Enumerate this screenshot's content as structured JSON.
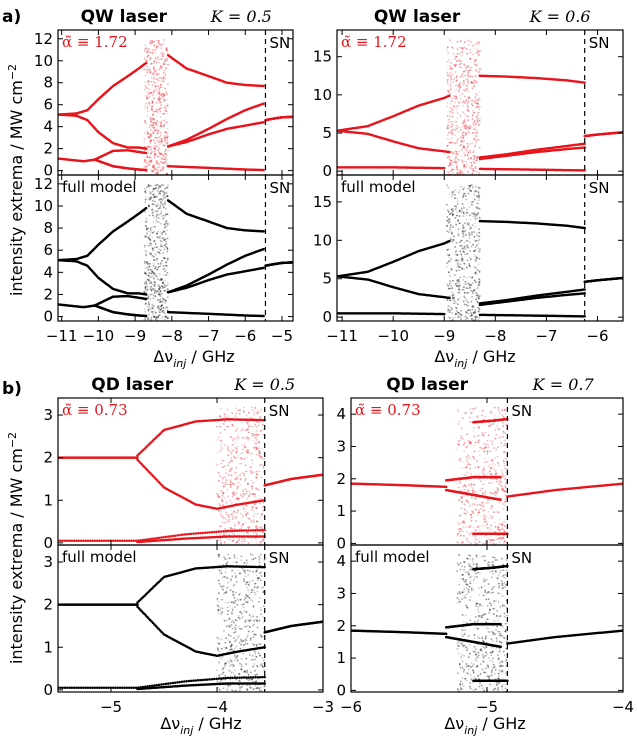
{
  "figure": {
    "panel_labels": [
      "a)",
      "b)"
    ],
    "y_axis_label": "intensity extrema / MW cm",
    "y_axis_label_exp": "−2",
    "x_axis_label": "Δν",
    "x_axis_label_sub": "inj",
    "x_axis_label_unit": " / GHz",
    "colors": {
      "reduced_model": "#e8141c",
      "full_model": "#000000",
      "frame": "#000000"
    }
  },
  "chart_data": [
    {
      "id": "qw-k05",
      "type": "scatter",
      "title": "QW laser",
      "k_label": "K = 0.5",
      "alpha_label": "α̃ ≡ 1.72",
      "sn_label": "SN",
      "bottom_label": "full model",
      "xlim": [
        -11.1,
        -4.7
      ],
      "xticks": [
        -11,
        -10,
        -9,
        -8,
        -7,
        -6,
        -5
      ],
      "xtick_labels": [
        "−11",
        "−10",
        "−9",
        "−8",
        "−7",
        "−6",
        "−5"
      ],
      "top_ylim": [
        -0.4,
        12.8
      ],
      "top_yticks": [
        0,
        2,
        4,
        6,
        8,
        10,
        12
      ],
      "bottom_ylim": [
        -0.4,
        12.8
      ],
      "bottom_yticks": [
        0,
        2,
        4,
        6,
        8,
        10,
        12
      ],
      "sn_x": -5.45,
      "chaos_band": [
        -8.75,
        -8.1
      ],
      "series": [
        {
          "branch": "upper",
          "x": [
            -11.1,
            -10.6,
            -10.3,
            -10.0,
            -9.6,
            -9.2,
            -8.9,
            -8.7
          ],
          "y": [
            5.1,
            5.2,
            5.5,
            6.5,
            7.7,
            8.6,
            9.3,
            9.8
          ]
        },
        {
          "branch": "lower-max",
          "x": [
            -11.1,
            -10.6,
            -10.3,
            -10.0,
            -9.6,
            -9.2,
            -8.9,
            -8.7
          ],
          "y": [
            5.1,
            5.0,
            4.6,
            3.5,
            2.5,
            2.1,
            2.1,
            2.0
          ]
        },
        {
          "branch": "base",
          "x": [
            -11.1,
            -10.4,
            -10.1,
            -9.6,
            -9.2,
            -8.9,
            -8.7
          ],
          "y": [
            1.1,
            0.85,
            1.0,
            1.8,
            1.85,
            1.7,
            1.6
          ]
        },
        {
          "branch": "base-min",
          "x": [
            -10.1,
            -9.6,
            -9.2,
            -8.9,
            -8.7
          ],
          "y": [
            1.0,
            0.4,
            0.2,
            0.1,
            0.05
          ]
        },
        {
          "branch": "post-upper",
          "x": [
            -8.1,
            -7.6,
            -7.0,
            -6.5,
            -6.0,
            -5.5
          ],
          "y": [
            10.5,
            9.3,
            8.6,
            8.0,
            7.8,
            7.7
          ]
        },
        {
          "branch": "post-mid1",
          "x": [
            -8.1,
            -7.6,
            -7.0,
            -6.5,
            -6.0,
            -5.5
          ],
          "y": [
            2.2,
            2.8,
            3.8,
            4.7,
            5.5,
            6.1
          ]
        },
        {
          "branch": "post-mid2",
          "x": [
            -8.1,
            -7.6,
            -7.0,
            -6.5,
            -6.0,
            -5.5
          ],
          "y": [
            2.2,
            2.6,
            3.3,
            3.8,
            4.1,
            4.4
          ]
        },
        {
          "branch": "post-low",
          "x": [
            -8.1,
            -7.0,
            -6.0,
            -5.5
          ],
          "y": [
            0.4,
            0.25,
            0.1,
            0.05
          ]
        },
        {
          "branch": "stable",
          "x": [
            -5.45,
            -5.2,
            -5.0,
            -4.7
          ],
          "y": [
            4.6,
            4.75,
            4.85,
            4.9
          ]
        }
      ]
    },
    {
      "id": "qw-k06",
      "type": "scatter",
      "title": "QW laser",
      "k_label": "K = 0.6",
      "alpha_label": "α̃ ≡ 1.72",
      "sn_label": "SN",
      "bottom_label": "full model",
      "xlim": [
        -11.1,
        -5.5
      ],
      "xticks": [
        -11,
        -10,
        -9,
        -8,
        -7,
        -6
      ],
      "xtick_labels": [
        "−11",
        "−10",
        "−9",
        "−8",
        "−7",
        "−6"
      ],
      "top_ylim": [
        -0.5,
        18.5
      ],
      "top_yticks": [
        0,
        5,
        10,
        15
      ],
      "bottom_ylim": [
        -0.5,
        18.5
      ],
      "bottom_yticks": [
        0,
        5,
        10,
        15
      ],
      "sn_x": -6.25,
      "chaos_band": [
        -8.95,
        -8.3
      ],
      "series": [
        {
          "branch": "upper",
          "x": [
            -11.1,
            -10.5,
            -10.0,
            -9.5,
            -9.0,
            -8.9
          ],
          "y": [
            5.3,
            5.9,
            7.2,
            8.6,
            9.6,
            9.9
          ]
        },
        {
          "branch": "lower-max",
          "x": [
            -11.1,
            -10.5,
            -10.0,
            -9.5,
            -9.0,
            -8.9
          ],
          "y": [
            5.3,
            4.9,
            3.9,
            3.0,
            2.6,
            2.5
          ]
        },
        {
          "branch": "base",
          "x": [
            -11.1,
            -10.0,
            -9.5,
            -9.0
          ],
          "y": [
            0.5,
            0.5,
            0.45,
            0.4
          ]
        },
        {
          "branch": "post-upper",
          "x": [
            -8.3,
            -7.8,
            -7.2,
            -6.6,
            -6.25
          ],
          "y": [
            12.5,
            12.4,
            12.2,
            11.9,
            11.6
          ]
        },
        {
          "branch": "post-mid1",
          "x": [
            -8.3,
            -7.8,
            -7.2,
            -6.6,
            -6.25
          ],
          "y": [
            1.8,
            2.2,
            2.8,
            3.3,
            3.6
          ]
        },
        {
          "branch": "post-mid2",
          "x": [
            -8.3,
            -7.8,
            -7.2,
            -6.6,
            -6.25
          ],
          "y": [
            1.6,
            2.0,
            2.5,
            2.9,
            3.1
          ]
        },
        {
          "branch": "post-low",
          "x": [
            -8.3,
            -7.2,
            -6.25
          ],
          "y": [
            0.3,
            0.2,
            0.1
          ]
        },
        {
          "branch": "stable",
          "x": [
            -6.25,
            -6.0,
            -5.5
          ],
          "y": [
            4.6,
            4.8,
            5.1
          ]
        }
      ]
    },
    {
      "id": "qd-k05",
      "type": "scatter",
      "title": "QD laser",
      "k_label": "K = 0.5",
      "alpha_label": "α̃ ≡ 0.73",
      "sn_label": "SN",
      "bottom_label": "full model",
      "xlim": [
        -5.5,
        -3.0
      ],
      "xticks": [
        -5,
        -4,
        -3
      ],
      "xtick_labels": [
        "−5",
        "−4",
        "−3"
      ],
      "top_ylim": [
        -0.05,
        3.4
      ],
      "top_yticks": [
        0,
        1,
        2,
        3
      ],
      "bottom_ylim": [
        -0.05,
        3.4
      ],
      "bottom_yticks": [
        0,
        1,
        2,
        3
      ],
      "sn_x": -3.55,
      "chaos_band": [
        -4.0,
        -3.55
      ],
      "series": [
        {
          "branch": "cw",
          "x": [
            -5.5,
            -5.0,
            -4.75
          ],
          "y": [
            2.0,
            2.0,
            2.0
          ]
        },
        {
          "branch": "upper",
          "x": [
            -4.75,
            -4.5,
            -4.2,
            -3.9,
            -3.55
          ],
          "y": [
            2.05,
            2.65,
            2.85,
            2.9,
            2.88
          ]
        },
        {
          "branch": "lower",
          "x": [
            -4.75,
            -4.5,
            -4.2,
            -4.0,
            -3.8,
            -3.55
          ],
          "y": [
            1.95,
            1.3,
            0.9,
            0.8,
            0.9,
            1.0
          ]
        },
        {
          "branch": "low1",
          "x": [
            -5.5,
            -4.75,
            -4.3,
            -3.9,
            -3.55
          ],
          "y": [
            0.05,
            0.05,
            0.2,
            0.28,
            0.3
          ]
        },
        {
          "branch": "low2",
          "x": [
            -4.75,
            -4.3,
            -3.9,
            -3.55
          ],
          "y": [
            0.02,
            0.1,
            0.15,
            0.15
          ]
        },
        {
          "branch": "stable",
          "x": [
            -3.55,
            -3.3,
            -3.0
          ],
          "y": [
            1.35,
            1.5,
            1.6
          ]
        }
      ]
    },
    {
      "id": "qd-k07",
      "type": "scatter",
      "title": "QD laser",
      "k_label": "K = 0.7",
      "alpha_label": "α̃ ≡ 0.73",
      "sn_label": "SN",
      "bottom_label": "full model",
      "xlim": [
        -6.0,
        -4.0
      ],
      "xticks": [
        -6,
        -5,
        -4
      ],
      "xtick_labels": [
        "−6",
        "−5",
        "−4"
      ],
      "top_ylim": [
        -0.05,
        4.5
      ],
      "top_yticks": [
        0,
        1,
        2,
        3,
        4
      ],
      "bottom_ylim": [
        -0.05,
        4.5
      ],
      "bottom_yticks": [
        0,
        1,
        2,
        3,
        4
      ],
      "sn_x": -4.85,
      "chaos_band": [
        -5.22,
        -4.85
      ],
      "series": [
        {
          "branch": "cw",
          "x": [
            -6.0,
            -5.6,
            -5.3
          ],
          "y": [
            1.85,
            1.8,
            1.75
          ]
        },
        {
          "branch": "upper",
          "x": [
            -5.3,
            -5.1,
            -4.9
          ],
          "y": [
            1.95,
            2.05,
            2.05
          ]
        },
        {
          "branch": "lower",
          "x": [
            -5.3,
            -5.1,
            -4.9
          ],
          "y": [
            1.65,
            1.5,
            1.35
          ]
        },
        {
          "branch": "jump",
          "x": [
            -5.1,
            -4.95,
            -4.85
          ],
          "y": [
            3.75,
            3.8,
            3.85
          ]
        },
        {
          "branch": "low",
          "x": [
            -5.1,
            -4.85
          ],
          "y": [
            0.3,
            0.3
          ]
        },
        {
          "branch": "stable",
          "x": [
            -4.85,
            -4.5,
            -4.0
          ],
          "y": [
            1.45,
            1.65,
            1.85
          ]
        }
      ]
    }
  ]
}
